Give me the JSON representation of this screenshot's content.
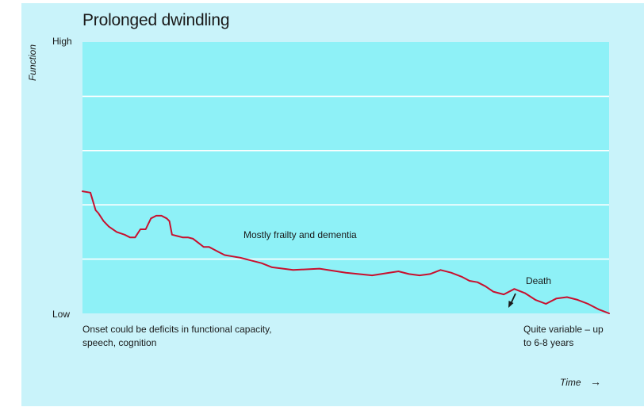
{
  "chart_data": {
    "type": "line",
    "title": "Prolonged dwindling",
    "ylabel": "Function",
    "xlabel": "Time",
    "yticks": [
      "High",
      "Low"
    ],
    "ylim": [
      0,
      100
    ],
    "xlim": [
      0,
      100
    ],
    "grid": true,
    "annotations": {
      "onset": "Onset could be deficits in functional capacity, speech, cognition",
      "middle": "Mostly frailty and dementia",
      "death": "Death",
      "variable": "Quite variable – up to 6-8 years"
    },
    "series": [
      {
        "color": "#c8102e",
        "x": [
          0,
          1.5,
          2.5,
          3,
          4,
          5,
          6.5,
          8,
          9,
          10,
          11,
          12,
          13,
          14,
          15,
          16,
          16.5,
          17,
          18,
          19,
          20,
          21,
          22,
          23,
          24,
          25,
          26,
          27,
          28.5,
          30,
          32,
          34,
          36,
          40,
          45,
          50,
          55,
          60,
          62,
          64,
          66,
          68,
          70,
          72,
          73.5,
          75,
          76.5,
          78,
          80,
          82,
          84,
          86,
          88,
          90,
          92,
          94,
          96,
          98,
          100
        ],
        "y": [
          45,
          44.5,
          38,
          37,
          34,
          32,
          30,
          29,
          28,
          28,
          31,
          31,
          35,
          36,
          36,
          35,
          34,
          29,
          28.5,
          28,
          28,
          27.5,
          26,
          24.5,
          24.5,
          23.5,
          22.5,
          21.5,
          21,
          20.5,
          19.5,
          18.5,
          17,
          16,
          16.5,
          15,
          14,
          15.5,
          14.5,
          14,
          14.5,
          16,
          15,
          13.5,
          12,
          11.5,
          10,
          8,
          7,
          9,
          7.5,
          5,
          3.5,
          5.5,
          6,
          5,
          3.5,
          1.5,
          0
        ]
      }
    ]
  }
}
